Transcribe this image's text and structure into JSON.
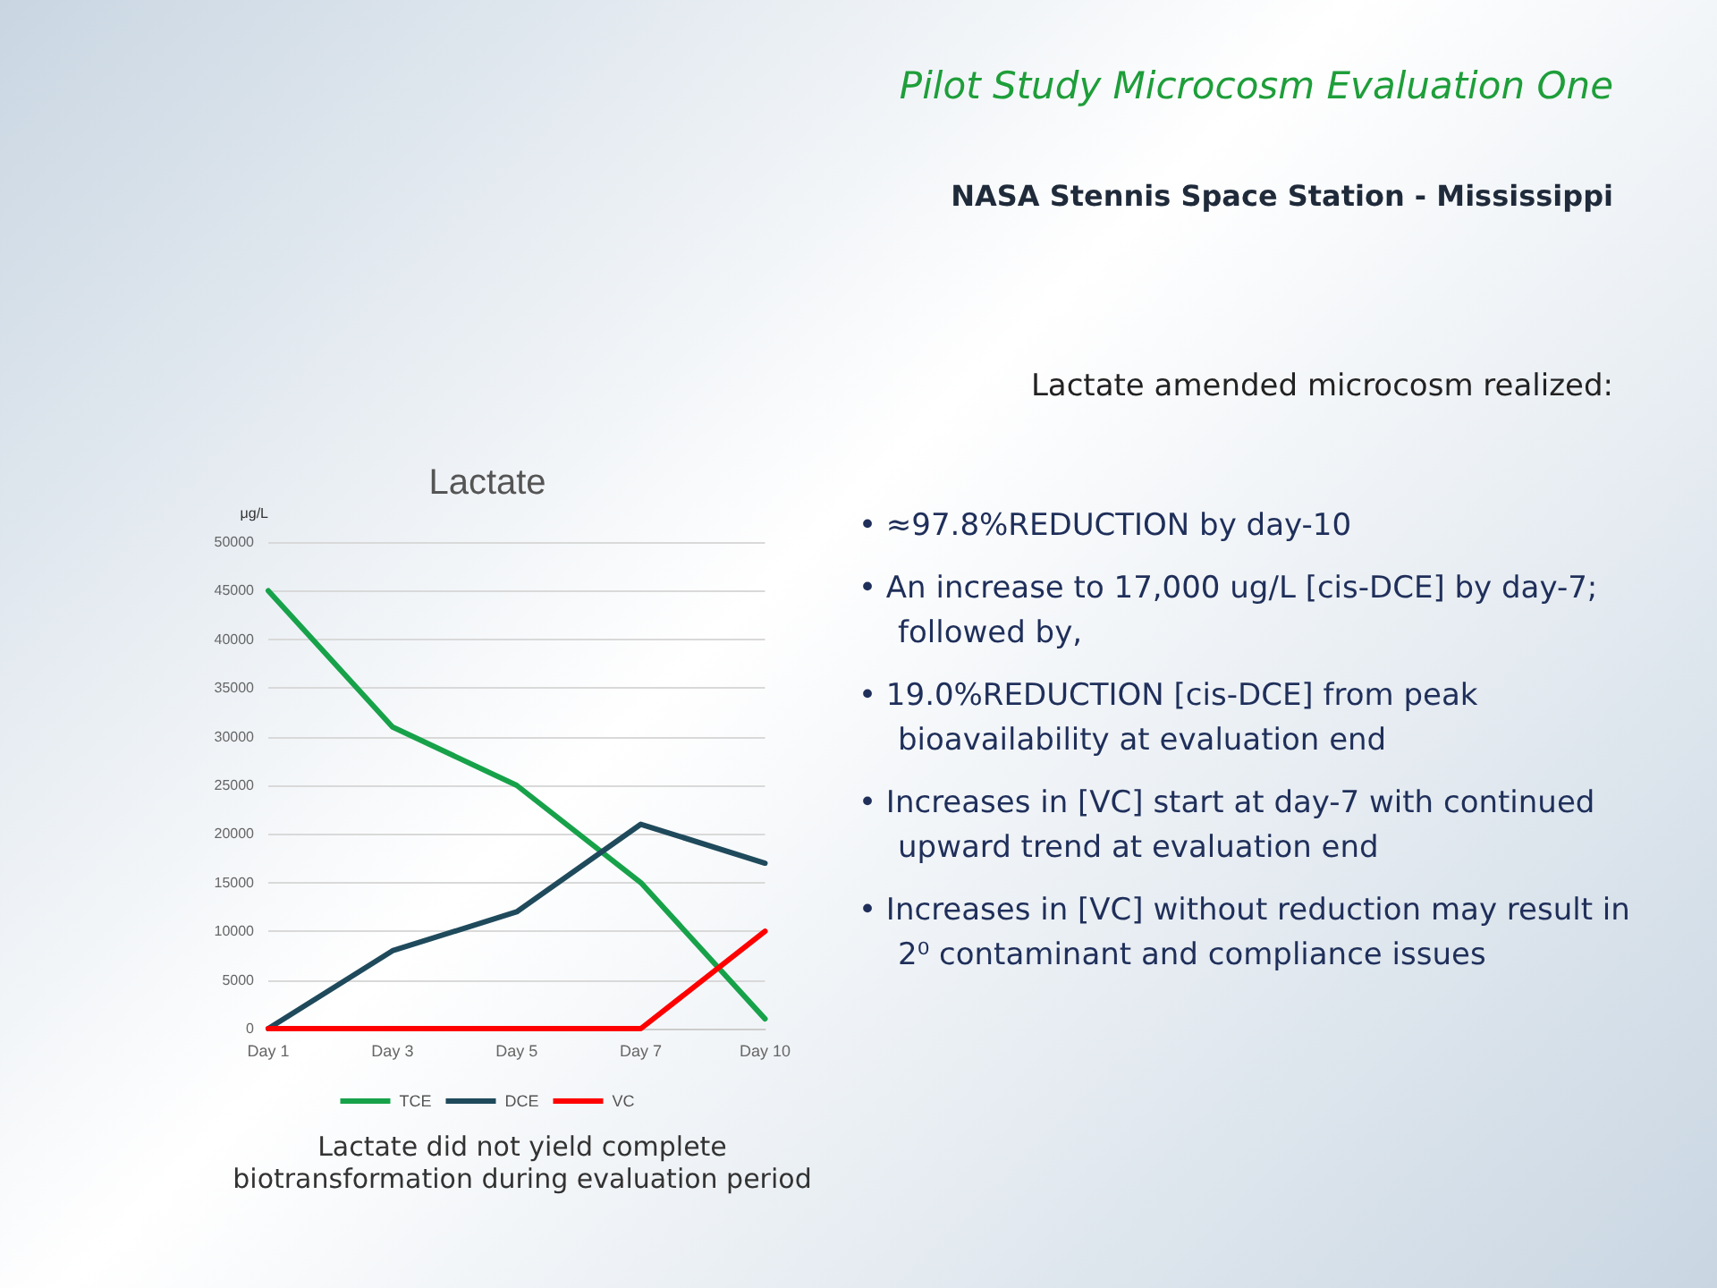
{
  "chart_data": {
    "type": "line",
    "title": "Lactate",
    "ylabel": "μg/L",
    "categories": [
      "Day 1",
      "Day 3",
      "Day 5",
      "Day 7",
      "Day 10"
    ],
    "series": [
      {
        "name": "TCE",
        "color": "#17a24a",
        "values": [
          45000,
          31000,
          25000,
          15000,
          1000
        ]
      },
      {
        "name": "DCE",
        "color": "#1f4a5c",
        "values": [
          0,
          8000,
          12000,
          21000,
          17000
        ]
      },
      {
        "name": "VC",
        "color": "#ff0000",
        "values": [
          0,
          0,
          0,
          0,
          10000
        ]
      }
    ],
    "ylim": [
      0,
      50000
    ],
    "yticks": [
      0,
      5000,
      10000,
      15000,
      20000,
      25000,
      30000,
      35000,
      40000,
      45000,
      50000
    ],
    "grid": "y",
    "legend": "bottom",
    "marker": "none",
    "line_style": "solid",
    "annotations": [
      "Pilot Study Microcosm Evaluation One",
      "NASA Stennis Space Station - Mississippi",
      "Lactate amended microcosm realized:",
      "•  ≈97.8%REDUCTION by day-10",
      "•  An increase to 17,000 ug/L [cis-DCE] by day-7; followed by,",
      "•  19.0%REDUCTION [cis-DCE] from peak bioavailability at evaluation end",
      "•  Increases in [VC] start at day-7 with continued upward trend at evaluation end",
      "•  Increases in [VC] without reduction may result in 2⁰ contaminant and compliance issues",
      "Lactate did not yield complete biotransformation during evaluation period"
    ]
  }
}
